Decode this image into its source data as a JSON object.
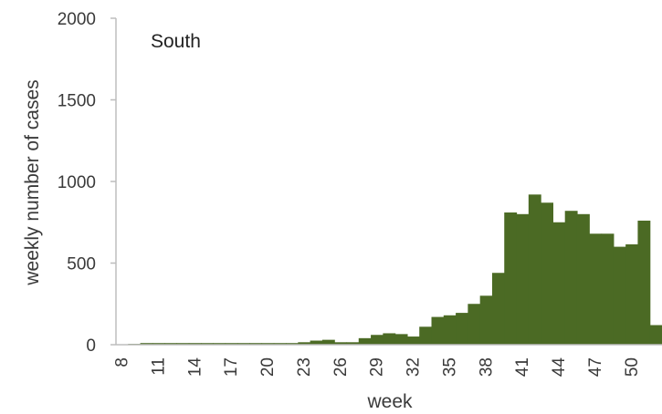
{
  "chart_data": {
    "type": "bar",
    "title": "South",
    "xlabel": "week",
    "ylabel": "weekly number of cases",
    "ylim": [
      0,
      2000
    ],
    "yticks": [
      "0",
      "500",
      "1000",
      "1500",
      "2000"
    ],
    "xticks": [
      "8",
      "11",
      "14",
      "17",
      "20",
      "23",
      "26",
      "29",
      "32",
      "35",
      "38",
      "41",
      "44",
      "47",
      "50"
    ],
    "x": [
      8,
      9,
      10,
      11,
      12,
      13,
      14,
      15,
      16,
      17,
      18,
      19,
      20,
      21,
      22,
      23,
      24,
      25,
      26,
      27,
      28,
      29,
      30,
      31,
      32,
      33,
      34,
      35,
      36,
      37,
      38,
      39,
      40,
      41,
      42,
      43,
      44,
      45,
      46,
      47,
      48,
      49,
      50,
      51,
      52
    ],
    "values": [
      0,
      5,
      10,
      10,
      10,
      10,
      10,
      10,
      10,
      10,
      10,
      10,
      10,
      10,
      10,
      15,
      25,
      30,
      15,
      15,
      40,
      60,
      70,
      65,
      50,
      110,
      170,
      180,
      195,
      250,
      300,
      440,
      810,
      800,
      920,
      870,
      750,
      820,
      800,
      680,
      680,
      600,
      615,
      760,
      120
    ],
    "grid": false,
    "bar_color": "#4b6a24",
    "axis_color": "#bdbdbd"
  }
}
